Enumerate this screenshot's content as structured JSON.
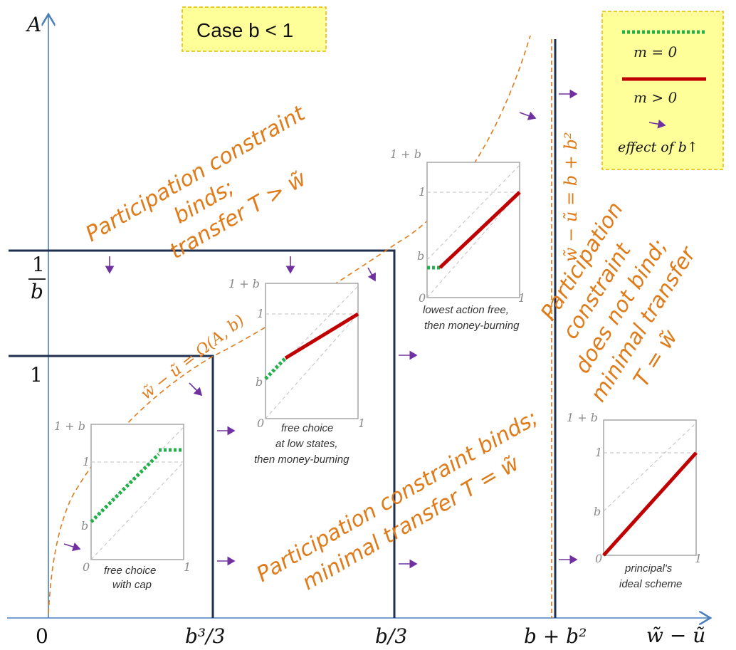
{
  "case_box": {
    "label": "Case b < 1"
  },
  "axes": {
    "y_label": "A",
    "x_label": "w̃ − ũ",
    "x_ticks": [
      "0",
      "b³/3",
      "b/3",
      "b + b²"
    ],
    "y_tick_one": "1",
    "y_tick_inv_b_num": "1",
    "y_tick_inv_b_den": "b"
  },
  "curve_label": "w̃ − ũ = Ω(A, b)",
  "vertical_line_label": "w̃ − ũ = b + b²",
  "regions": {
    "top_left": [
      "Participation constraint",
      "binds;",
      "transfer T > w̃"
    ],
    "bottom": [
      "Participation constraint binds;",
      "minimal transfer T = w̃"
    ],
    "right": [
      "Participation",
      "constraint",
      "does not bind;",
      "minimal transfer",
      "T = w̃"
    ]
  },
  "legend": {
    "green_label": "m = 0",
    "red_label": "m > 0",
    "arrow_label": "effect of b↑",
    "green_color": "#22b04a",
    "red_color": "#c00000",
    "arrow_color": "#7030a0"
  },
  "insets": {
    "tick_top": "1 + b",
    "tick_one": "1",
    "tick_b": "b",
    "tick_zero": "0",
    "tick_x_one": "1",
    "captions": {
      "cap": [
        "free choice",
        "with cap"
      ],
      "low": [
        "free choice",
        "at low states,",
        "then money-burning"
      ],
      "lowest": [
        "lowest action free,",
        "then money-burning"
      ],
      "ideal": [
        "principal's",
        "ideal scheme"
      ]
    }
  },
  "colors": {
    "axis": "#4a7ebb",
    "box": "#1f2f4f",
    "curve": "#e07b1a",
    "case_fill": "#ffff99",
    "case_border": "#e6b800"
  }
}
